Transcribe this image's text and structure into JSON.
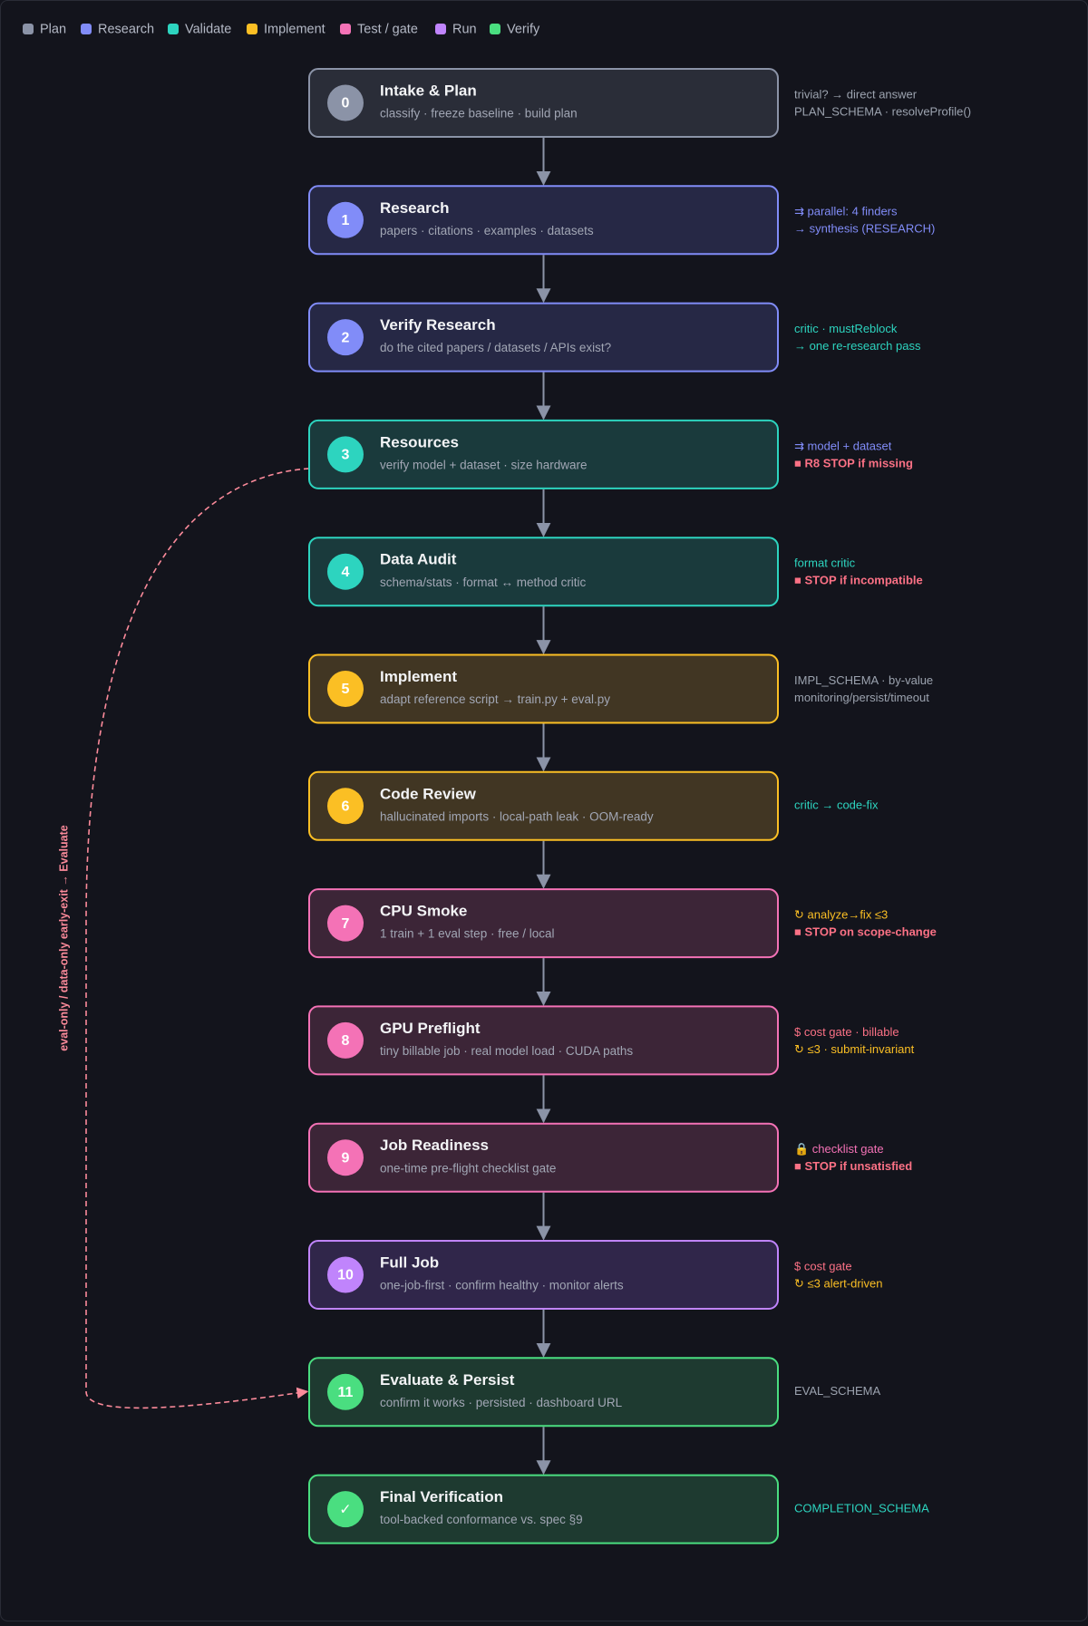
{
  "legend": [
    {
      "label": "Plan",
      "color": "#8b93a7"
    },
    {
      "label": "Research",
      "color": "#818cf8"
    },
    {
      "label": "Validate",
      "color": "#2dd4bf"
    },
    {
      "label": "Implement",
      "color": "#fbbf24"
    },
    {
      "label": "Test / gate",
      "color": "#f472b6"
    },
    {
      "label": "Run",
      "color": "#c084fc"
    },
    {
      "label": "Verify",
      "color": "#4ade80"
    }
  ],
  "nodes": [
    {
      "id": "0",
      "title": "Intake & Plan",
      "subtitle": "classify · freeze baseline · build plan",
      "color": "#8b93a7",
      "fill": "#2a2d38",
      "notes": [
        {
          "text": "trivial? → direct answer",
          "color": "#9ca3af"
        },
        {
          "text": "PLAN_SCHEMA · resolveProfile()",
          "color": "#9ca3af"
        }
      ]
    },
    {
      "id": "1",
      "title": "Research",
      "subtitle": "papers · citations · examples · datasets",
      "color": "#818cf8",
      "fill": "#262845",
      "notes": [
        {
          "text": "⇉ parallel: 4 finders",
          "color": "#818cf8"
        },
        {
          "text": "→ synthesis (RESEARCH)",
          "color": "#818cf8"
        }
      ]
    },
    {
      "id": "2",
      "title": "Verify Research",
      "subtitle": "do the cited papers / datasets / APIs exist?",
      "color": "#818cf8",
      "fill": "#262845",
      "notes": [
        {
          "text": "critic · mustReblock",
          "color": "#2dd4bf"
        },
        {
          "text": "→ one re-research pass",
          "color": "#2dd4bf"
        }
      ]
    },
    {
      "id": "3",
      "title": "Resources",
      "subtitle": "verify model + dataset · size hardware",
      "color": "#2dd4bf",
      "fill": "#1a3a3c",
      "notes": [
        {
          "text": "⇉ model + dataset",
          "color": "#818cf8"
        },
        {
          "text": "■ R8 STOP if missing",
          "color": "#fb7185",
          "bold": true
        }
      ]
    },
    {
      "id": "4",
      "title": "Data Audit",
      "subtitle": "schema/stats · format ↔ method critic",
      "color": "#2dd4bf",
      "fill": "#1a3a3c",
      "notes": [
        {
          "text": "format critic",
          "color": "#2dd4bf"
        },
        {
          "text": "■ STOP if incompatible",
          "color": "#fb7185",
          "bold": true
        }
      ]
    },
    {
      "id": "5",
      "title": "Implement",
      "subtitle": "adapt reference script → train.py + eval.py",
      "color": "#fbbf24",
      "fill": "#413623",
      "notes": [
        {
          "text": "IMPL_SCHEMA · by-value",
          "color": "#9ca3af"
        },
        {
          "text": "monitoring/persist/timeout",
          "color": "#9ca3af"
        }
      ]
    },
    {
      "id": "6",
      "title": "Code Review",
      "subtitle": "hallucinated imports · local-path leak · OOM-ready",
      "color": "#fbbf24",
      "fill": "#413623",
      "notes": [
        {
          "text": "critic → code-fix",
          "color": "#2dd4bf"
        }
      ]
    },
    {
      "id": "7",
      "title": "CPU Smoke",
      "subtitle": "1 train + 1 eval step · free / local",
      "color": "#f472b6",
      "fill": "#3c2537",
      "notes": [
        {
          "text": "↻ analyze→fix ≤3",
          "color": "#fbbf24"
        },
        {
          "text": "■ STOP on scope-change",
          "color": "#fb7185",
          "bold": true
        }
      ]
    },
    {
      "id": "8",
      "title": "GPU Preflight",
      "subtitle": "tiny billable job · real model load · CUDA paths",
      "color": "#f472b6",
      "fill": "#3c2537",
      "notes": [
        {
          "text": "$ cost gate · billable",
          "color": "#fb7185"
        },
        {
          "text": "↻ ≤3 · submit-invariant",
          "color": "#fbbf24"
        }
      ]
    },
    {
      "id": "9",
      "title": "Job Readiness",
      "subtitle": "one-time pre-flight checklist gate",
      "color": "#f472b6",
      "fill": "#3c2537",
      "notes": [
        {
          "text": "🔒 checklist gate",
          "color": "#f472b6"
        },
        {
          "text": "■ STOP if unsatisfied",
          "color": "#fb7185",
          "bold": true
        }
      ]
    },
    {
      "id": "10",
      "title": "Full Job",
      "subtitle": "one-job-first · confirm healthy · monitor alerts",
      "color": "#c084fc",
      "fill": "#30264a",
      "notes": [
        {
          "text": "$ cost gate",
          "color": "#fb7185"
        },
        {
          "text": "↻ ≤3 alert-driven",
          "color": "#fbbf24"
        }
      ]
    },
    {
      "id": "11",
      "title": "Evaluate & Persist",
      "subtitle": "confirm it works · persisted · dashboard URL",
      "color": "#4ade80",
      "fill": "#1e3a30",
      "notes": [
        {
          "text": "EVAL_SCHEMA",
          "color": "#9ca3af"
        }
      ]
    },
    {
      "id": "✓",
      "title": "Final Verification",
      "subtitle": "tool-backed conformance vs. spec §9",
      "color": "#4ade80",
      "fill": "#1e3a30",
      "notes": [
        {
          "text": "COMPLETION_SCHEMA",
          "color": "#2dd4bf"
        }
      ]
    }
  ],
  "bypass": {
    "label": "eval-only / data-only early-exit → Evaluate",
    "color": "#fb8a9a"
  }
}
